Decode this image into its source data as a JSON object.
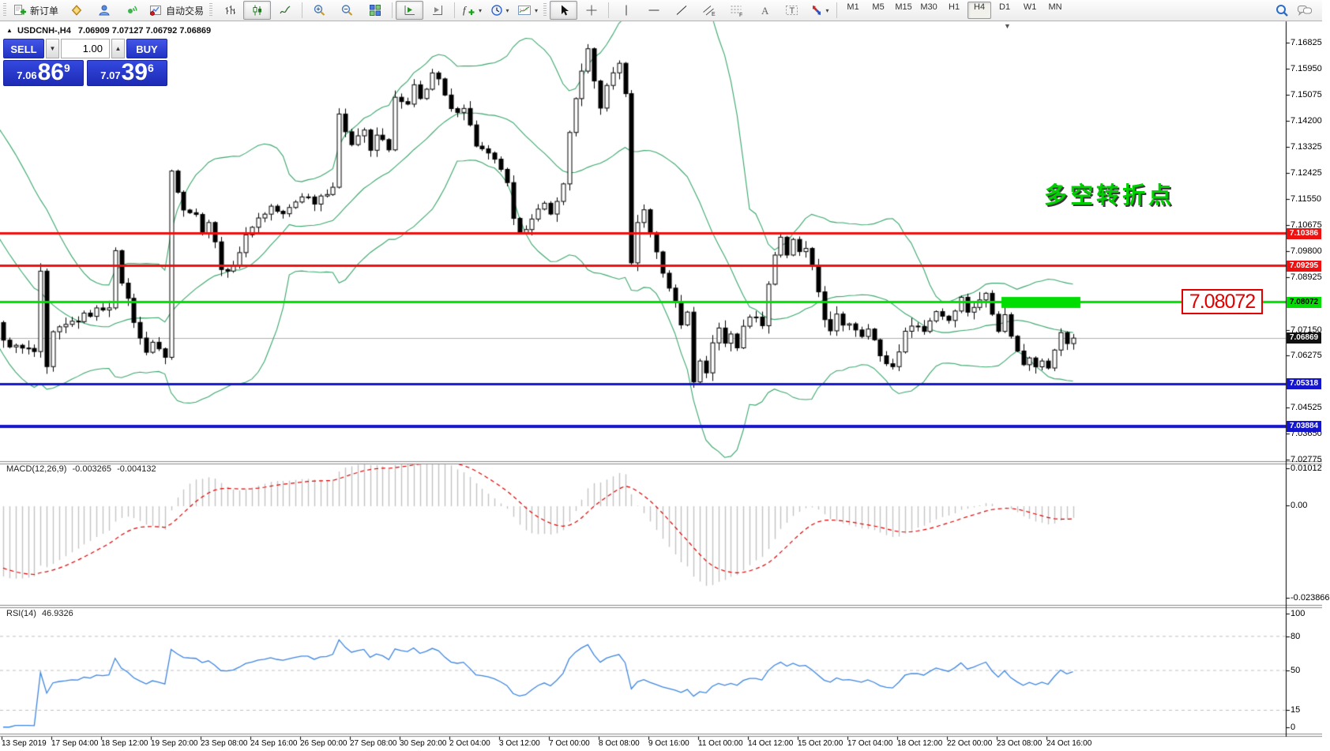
{
  "toolbar": {
    "new_order_label": "新订单",
    "autotrade_label": "自动交易",
    "caret": "▾",
    "text_tool_glyph": "A",
    "label_tool_glyph": "T",
    "channel_glyph": "E",
    "fibo_glyph": "F",
    "timeframes": [
      "M1",
      "M5",
      "M15",
      "M30",
      "H1",
      "H4",
      "D1",
      "W1",
      "MN"
    ],
    "active_timeframe": "H4",
    "icon_names": [
      "new-order-icon",
      "quotes-icon",
      "profile-icon",
      "signals-icon",
      "autotrade-icon",
      "bar-chart-icon",
      "candlestick-chart-icon",
      "line-chart-icon",
      "zoom-in-icon",
      "zoom-out-icon",
      "tile-windows-icon",
      "auto-scroll-icon",
      "chart-shift-icon",
      "indicators-icon",
      "periods-icon",
      "templates-icon",
      "cursor-icon",
      "crosshair-icon",
      "vertical-line-icon",
      "horizontal-line-icon",
      "trendline-icon",
      "channel-icon",
      "fibonacci-icon",
      "text-icon",
      "label-icon",
      "arrows-icon",
      "search-icon",
      "chat-icon"
    ]
  },
  "trade_panel": {
    "collapse_glyph": "▲",
    "sell_label": "SELL",
    "buy_label": "BUY",
    "volume": "1.00",
    "spin_up": "▲",
    "spin_down": "▼",
    "sell_small": "7.06",
    "sell_big": "86",
    "sell_sup": "9",
    "buy_small": "7.07",
    "buy_big": "39",
    "buy_sup": "6"
  },
  "chart": {
    "title": "USDCNH-,H4",
    "ohlc": "7.06909 7.07127 7.06792 7.06869",
    "shift_marker_glyph": "▼",
    "annotation_text": "多空转折点",
    "annotation_color": "#00cf00",
    "price_callout": "7.08072",
    "bid_value": 7.06869,
    "axis_ticks": [
      "7.16825",
      "7.15950",
      "7.15075",
      "7.14200",
      "7.13325",
      "7.12425",
      "7.11550",
      "7.10675",
      "7.09800",
      "7.08925",
      "7.07150",
      "7.06275",
      "7.04525",
      "7.03650",
      "7.02775"
    ],
    "badges": [
      {
        "value": "7.10386",
        "bg": "#ee1111",
        "fg": "#ffffff"
      },
      {
        "value": "7.09295",
        "bg": "#ee1111",
        "fg": "#ffffff"
      },
      {
        "value": "7.08072",
        "bg": "#00dd00",
        "fg": "#000000"
      },
      {
        "value": "7.06869",
        "bg": "#111111",
        "fg": "#ffffff"
      },
      {
        "value": "7.05318",
        "bg": "#1515cc",
        "fg": "#ffffff"
      },
      {
        "value": "7.03884",
        "bg": "#1515cc",
        "fg": "#ffffff"
      }
    ],
    "hlines": [
      {
        "price": 7.10386,
        "color": "#ee1111",
        "w": 3
      },
      {
        "price": 7.09295,
        "color": "#ee1111",
        "w": 3
      },
      {
        "price": 7.08072,
        "color": "#00dd00",
        "w": 3
      },
      {
        "price": 7.05318,
        "color": "#1515cc",
        "w": 3
      },
      {
        "price": 7.03884,
        "color": "#1515cc",
        "w": 4
      }
    ],
    "green_zone": {
      "price": 7.08072,
      "x_start": 1268,
      "x_end": 1368,
      "height": 14,
      "color": "#00dd00"
    }
  },
  "macd": {
    "name": "MACD(12,26,9)",
    "main_value": "-0.003265",
    "signal_value": "-0.004132",
    "axis": [
      {
        "label": "0.01012",
        "y": 593
      },
      {
        "label": "0.00",
        "y": 640
      },
      {
        "label": "-0.023866",
        "y": 757
      }
    ]
  },
  "rsi": {
    "name": "RSI(14)",
    "value": "46.9326",
    "axis": [
      {
        "label": "100",
        "v": 100
      },
      {
        "label": "80",
        "v": 80
      },
      {
        "label": "50",
        "v": 50
      },
      {
        "label": "15",
        "v": 15
      },
      {
        "label": "0",
        "v": 0
      }
    ],
    "levels": [
      80,
      50,
      15
    ]
  },
  "time_axis": [
    "13 Sep 2019",
    "17 Sep 04:00",
    "18 Sep 12:00",
    "19 Sep 20:00",
    "23 Sep 08:00",
    "24 Sep 16:00",
    "26 Sep 00:00",
    "27 Sep 08:00",
    "30 Sep 20:00",
    "2 Oct 04:00",
    "3 Oct 12:00",
    "7 Oct 00:00",
    "8 Oct 08:00",
    "9 Oct 16:00",
    "11 Oct 00:00",
    "14 Oct 12:00",
    "15 Oct 20:00",
    "17 Oct 04:00",
    "18 Oct 12:00",
    "22 Oct 00:00",
    "23 Oct 08:00",
    "24 Oct 16:00"
  ],
  "chart_data": {
    "type": "candlestick",
    "symbol": "USDCNH-",
    "timeframe": "H4",
    "bars_visible": 173,
    "bars_per_time_label": 8,
    "ylim": [
      7.02775,
      7.16825
    ],
    "indicators": [
      "Bollinger Bands (20)",
      "MACD(12,26,9)",
      "RSI(14)"
    ],
    "price_keypoints": [
      [
        0,
        7.068
      ],
      [
        2,
        7.0655
      ],
      [
        5,
        7.064
      ],
      [
        6,
        7.09
      ],
      [
        7,
        7.058
      ],
      [
        8,
        7.07
      ],
      [
        11,
        7.074
      ],
      [
        15,
        7.078
      ],
      [
        17,
        7.08
      ],
      [
        18,
        7.097
      ],
      [
        19,
        7.088
      ],
      [
        21,
        7.075
      ],
      [
        23,
        7.063
      ],
      [
        24,
        7.068
      ],
      [
        26,
        7.062
      ],
      [
        27,
        7.125
      ],
      [
        29,
        7.113
      ],
      [
        31,
        7.11
      ],
      [
        32,
        7.105
      ],
      [
        33,
        7.108
      ],
      [
        35,
        7.093
      ],
      [
        36,
        7.09
      ],
      [
        38,
        7.098
      ],
      [
        40,
        7.107
      ],
      [
        43,
        7.113
      ],
      [
        45,
        7.11
      ],
      [
        48,
        7.117
      ],
      [
        50,
        7.115
      ],
      [
        53,
        7.12
      ],
      [
        54,
        7.143
      ],
      [
        56,
        7.135
      ],
      [
        58,
        7.139
      ],
      [
        59,
        7.131
      ],
      [
        60,
        7.137
      ],
      [
        62,
        7.133
      ],
      [
        63,
        7.149
      ],
      [
        65,
        7.147
      ],
      [
        66,
        7.153
      ],
      [
        67,
        7.149
      ],
      [
        69,
        7.158
      ],
      [
        70,
        7.155
      ],
      [
        71,
        7.15
      ],
      [
        72,
        7.145
      ],
      [
        74,
        7.147
      ],
      [
        75,
        7.14
      ],
      [
        76,
        7.134
      ],
      [
        78,
        7.13
      ],
      [
        80,
        7.126
      ],
      [
        81,
        7.12
      ],
      [
        82,
        7.108
      ],
      [
        83,
        7.103
      ],
      [
        85,
        7.11
      ],
      [
        87,
        7.113
      ],
      [
        88,
        7.11
      ],
      [
        89,
        7.116
      ],
      [
        90,
        7.12
      ],
      [
        91,
        7.138
      ],
      [
        92,
        7.15
      ],
      [
        93,
        7.158
      ],
      [
        94,
        7.165
      ],
      [
        95,
        7.155
      ],
      [
        96,
        7.147
      ],
      [
        97,
        7.153
      ],
      [
        98,
        7.158
      ],
      [
        99,
        7.162
      ],
      [
        100,
        7.15
      ],
      [
        101,
        7.095
      ],
      [
        102,
        7.107
      ],
      [
        103,
        7.113
      ],
      [
        104,
        7.104
      ],
      [
        105,
        7.098
      ],
      [
        106,
        7.091
      ],
      [
        107,
        7.086
      ],
      [
        108,
        7.08
      ],
      [
        109,
        7.073
      ],
      [
        110,
        7.078
      ],
      [
        111,
        7.055
      ],
      [
        112,
        7.062
      ],
      [
        113,
        7.056
      ],
      [
        114,
        7.068
      ],
      [
        115,
        7.072
      ],
      [
        116,
        7.067
      ],
      [
        117,
        7.07
      ],
      [
        118,
        7.066
      ],
      [
        119,
        7.073
      ],
      [
        121,
        7.077
      ],
      [
        122,
        7.072
      ],
      [
        123,
        7.088
      ],
      [
        124,
        7.097
      ],
      [
        125,
        7.103
      ],
      [
        126,
        7.097
      ],
      [
        127,
        7.101
      ],
      [
        128,
        7.097
      ],
      [
        129,
        7.099
      ],
      [
        130,
        7.092
      ],
      [
        131,
        7.083
      ],
      [
        132,
        7.075
      ],
      [
        133,
        7.072
      ],
      [
        134,
        7.076
      ],
      [
        135,
        7.072
      ],
      [
        136,
        7.074
      ],
      [
        138,
        7.07
      ],
      [
        139,
        7.073
      ],
      [
        140,
        7.068
      ],
      [
        141,
        7.062
      ],
      [
        143,
        7.059
      ],
      [
        144,
        7.065
      ],
      [
        145,
        7.07
      ],
      [
        146,
        7.074
      ],
      [
        148,
        7.071
      ],
      [
        149,
        7.075
      ],
      [
        150,
        7.078
      ],
      [
        152,
        7.075
      ],
      [
        153,
        7.079
      ],
      [
        154,
        7.082
      ],
      [
        155,
        7.078
      ],
      [
        157,
        7.081
      ],
      [
        158,
        7.084
      ],
      [
        159,
        7.078
      ],
      [
        160,
        7.072
      ],
      [
        161,
        7.076
      ],
      [
        162,
        7.07
      ],
      [
        163,
        7.064
      ],
      [
        164,
        7.06
      ],
      [
        165,
        7.063
      ],
      [
        166,
        7.06
      ],
      [
        167,
        7.062
      ],
      [
        168,
        7.058
      ],
      [
        169,
        7.065
      ],
      [
        170,
        7.07
      ],
      [
        171,
        7.067
      ],
      [
        172,
        7.0687
      ]
    ],
    "style": {
      "bull": "#ffffff",
      "bear": "#000000",
      "wick": "#000000",
      "bands": "#3aa76d",
      "macd_hist": "#c4c4c4",
      "macd_signal": "#e00000",
      "rsi": "#3e86e0",
      "grid_dash": "#c0c0c0",
      "bid_line": "#b0b0b0",
      "panel_blue": "#2133c6"
    }
  }
}
